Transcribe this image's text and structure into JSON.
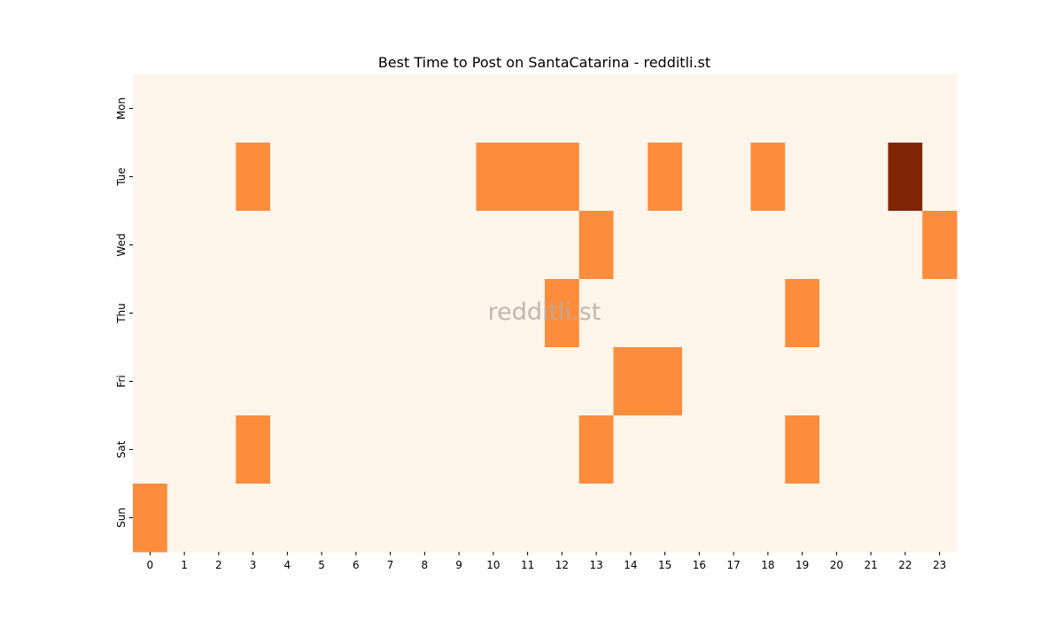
{
  "chart_data": {
    "type": "heatmap",
    "title": "Best Time to Post on SantaCatarina - redditli.st",
    "watermark": "redditli.st",
    "xlabel": "",
    "ylabel": "",
    "x": [
      "0",
      "1",
      "2",
      "3",
      "4",
      "5",
      "6",
      "7",
      "8",
      "9",
      "10",
      "11",
      "12",
      "13",
      "14",
      "15",
      "16",
      "17",
      "18",
      "19",
      "20",
      "21",
      "22",
      "23"
    ],
    "y": [
      "Mon",
      "Tue",
      "Wed",
      "Thu",
      "Fri",
      "Sat",
      "Sun"
    ],
    "values": [
      [
        0,
        0,
        0,
        0,
        0,
        0,
        0,
        0,
        0,
        0,
        0,
        0,
        0,
        0,
        0,
        0,
        0,
        0,
        0,
        0,
        0,
        0,
        0,
        0
      ],
      [
        0,
        0,
        0,
        1,
        0,
        0,
        0,
        0,
        0,
        0,
        1,
        1,
        1,
        0,
        0,
        1,
        0,
        0,
        1,
        0,
        0,
        0,
        2,
        0
      ],
      [
        0,
        0,
        0,
        0,
        0,
        0,
        0,
        0,
        0,
        0,
        0,
        0,
        0,
        1,
        0,
        0,
        0,
        0,
        0,
        0,
        0,
        0,
        0,
        1
      ],
      [
        0,
        0,
        0,
        0,
        0,
        0,
        0,
        0,
        0,
        0,
        0,
        0,
        1,
        0,
        0,
        0,
        0,
        0,
        0,
        1,
        0,
        0,
        0,
        0
      ],
      [
        0,
        0,
        0,
        0,
        0,
        0,
        0,
        0,
        0,
        0,
        0,
        0,
        0,
        0,
        1,
        1,
        0,
        0,
        0,
        0,
        0,
        0,
        0,
        0
      ],
      [
        0,
        0,
        0,
        1,
        0,
        0,
        0,
        0,
        0,
        0,
        0,
        0,
        0,
        1,
        0,
        0,
        0,
        0,
        0,
        1,
        0,
        0,
        0,
        0
      ],
      [
        1,
        0,
        0,
        0,
        0,
        0,
        0,
        0,
        0,
        0,
        0,
        0,
        0,
        0,
        0,
        0,
        0,
        0,
        0,
        0,
        0,
        0,
        0,
        0
      ]
    ],
    "colorscale": [
      "#fff5eb",
      "#fd8d3c",
      "#7f2704"
    ],
    "grid": false,
    "colorbar": false
  }
}
